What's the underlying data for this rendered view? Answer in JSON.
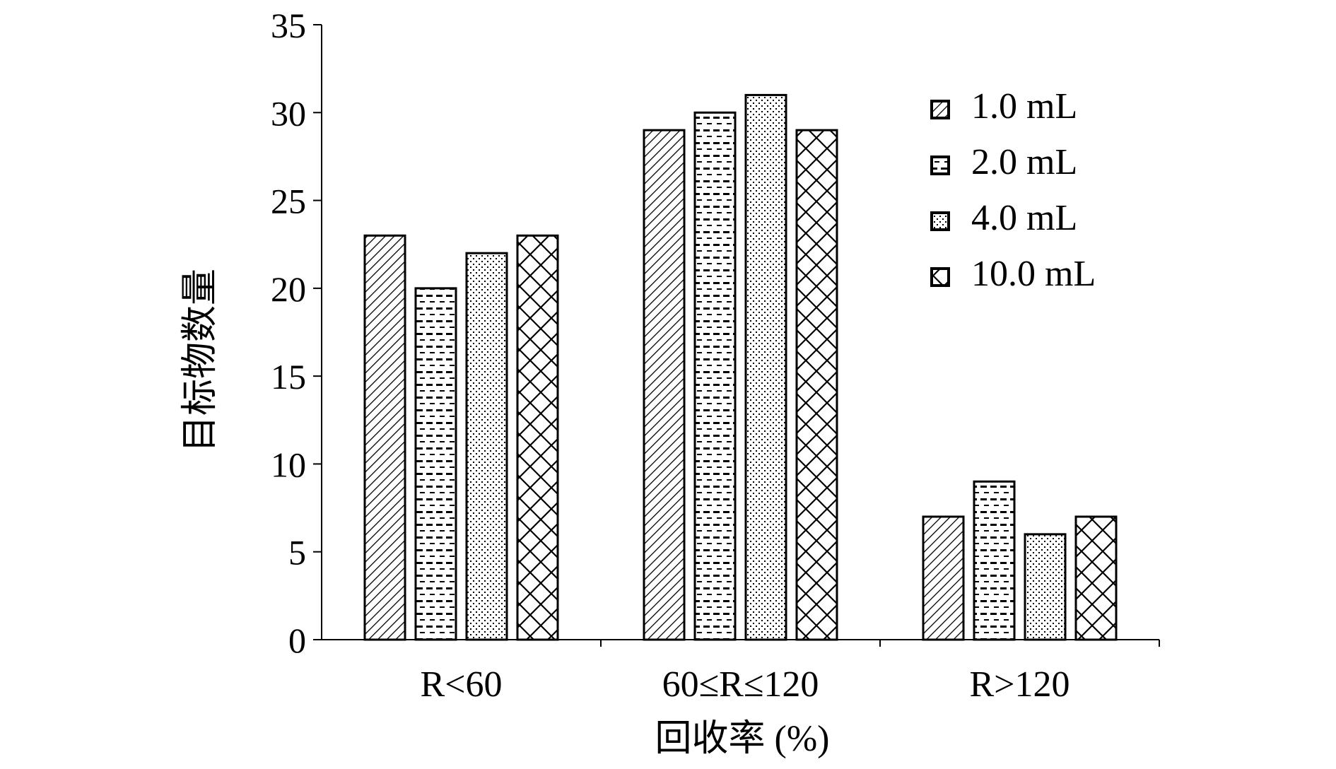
{
  "chart_data": {
    "type": "bar",
    "title": "",
    "xlabel": "回收率 (%)",
    "ylabel": "目标物数量",
    "categories": [
      "R<60",
      "60≤R≤120",
      "R>120"
    ],
    "ylim": [
      0,
      35
    ],
    "yticks": [
      0,
      5,
      10,
      15,
      20,
      25,
      30,
      35
    ],
    "grid": false,
    "legend_position": "top-right",
    "series": [
      {
        "name": "1.0 mL",
        "pattern": "diagonal-hatch",
        "values": [
          23,
          29,
          7
        ]
      },
      {
        "name": "2.0 mL",
        "pattern": "dashed-rows",
        "values": [
          20,
          30,
          9
        ]
      },
      {
        "name": "4.0 mL",
        "pattern": "fine-dots",
        "values": [
          22,
          31,
          6
        ]
      },
      {
        "name": "10.0 mL",
        "pattern": "lattice",
        "values": [
          23,
          29,
          7
        ]
      }
    ],
    "colors": {
      "fill": "#ffffff",
      "ink": "#000000"
    }
  }
}
